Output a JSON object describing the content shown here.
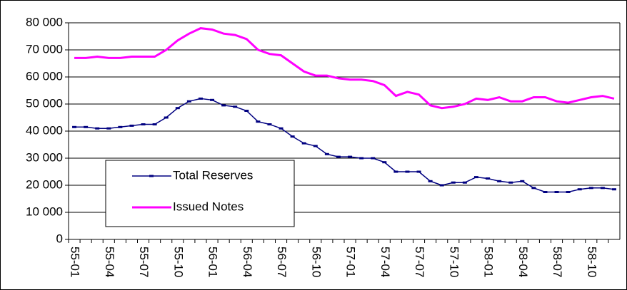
{
  "chart_data": {
    "type": "line",
    "categories": [
      "55-01",
      null,
      null,
      "55-04",
      null,
      null,
      "55-07",
      null,
      null,
      "55-10",
      null,
      null,
      "56-01",
      null,
      null,
      "56-04",
      null,
      null,
      "56-07",
      null,
      null,
      "56-10",
      null,
      null,
      "57-01",
      null,
      null,
      "57-04",
      null,
      null,
      "57-07",
      null,
      null,
      "57-10",
      null,
      null,
      "58-01",
      null,
      null,
      "58-04",
      null,
      null,
      "58-07",
      null,
      null,
      "58-10",
      null,
      null
    ],
    "series": [
      {
        "name": "Total Reserves",
        "color": "#000080",
        "values": [
          41500,
          41500,
          41000,
          41000,
          41500,
          42000,
          42500,
          42500,
          45000,
          48500,
          51000,
          52000,
          51500,
          49500,
          49000,
          47500,
          43500,
          42500,
          41000,
          38000,
          35500,
          34500,
          31500,
          30500,
          30500,
          30000,
          30000,
          28500,
          25000,
          25000,
          25000,
          21500,
          20000,
          21000,
          21000,
          23000,
          22500,
          21500,
          21000,
          21500,
          19000,
          17500,
          17500,
          17500,
          18500,
          19000,
          19000,
          18500
        ]
      },
      {
        "name": "Issued Notes",
        "color": "#ff00ff",
        "values": [
          67000,
          67000,
          67500,
          67000,
          67000,
          67500,
          67500,
          67500,
          70000,
          73500,
          76000,
          78000,
          77500,
          76000,
          75500,
          74000,
          70000,
          68500,
          68000,
          65000,
          62000,
          60500,
          60500,
          59500,
          59000,
          59000,
          58500,
          57000,
          53000,
          54500,
          53500,
          49500,
          48500,
          49000,
          50000,
          52000,
          51500,
          52500,
          51000,
          51000,
          52500,
          52500,
          51000,
          50500,
          51500,
          52500,
          53000,
          52000
        ]
      }
    ],
    "ylim": [
      0,
      80000
    ],
    "yticks": [
      0,
      {
        "value": 10000,
        "label": "10 000"
      },
      {
        "value": 20000,
        "label": "20 000"
      },
      {
        "value": 30000,
        "label": "30 000"
      },
      {
        "value": 40000,
        "label": "40 000"
      },
      {
        "value": 50000,
        "label": "50 000"
      },
      {
        "value": 60000,
        "label": "60 000"
      },
      {
        "value": 70000,
        "label": "70 000"
      },
      {
        "value": 80000,
        "label": "80 000"
      }
    ],
    "grid": true
  }
}
